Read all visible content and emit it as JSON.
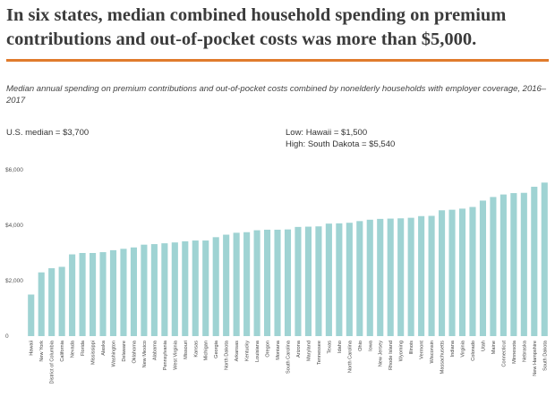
{
  "headline": "In six states, median combined household spending on premium contributions and out-of-pocket costs was more than $5,000.",
  "subtitle": "Median annual spending on premium contributions and out-of-pocket costs combined by nonelderly households with employer coverage, 2016–2017",
  "notes": {
    "us_median": "U.S. median = $3,700",
    "low": "Low: Hawaii = $1,500",
    "high": "High: South Dakota = $5,540"
  },
  "colors": {
    "bar": "#9fd3d3",
    "rule": "#e07b2c"
  },
  "chart_data": {
    "type": "bar",
    "title": "",
    "xlabel": "",
    "ylabel": "",
    "ylim": [
      0,
      6000
    ],
    "yticks": [
      0,
      2000,
      4000,
      6000
    ],
    "ytick_labels": [
      "0",
      "$2,000",
      "$4,000",
      "$6,000"
    ],
    "grid": false,
    "categories": [
      "Hawaii",
      "New York",
      "District of Columbia",
      "California",
      "Nevada",
      "Florida",
      "Mississippi",
      "Alaska",
      "Washington",
      "Delaware",
      "Oklahoma",
      "New Mexico",
      "Alabama",
      "Pennsylvania",
      "West Virginia",
      "Missouri",
      "Kansas",
      "Michigan",
      "Georgia",
      "North Dakota",
      "Arkansas",
      "Kentucky",
      "Louisiana",
      "Oregon",
      "Montana",
      "South Carolina",
      "Arizona",
      "Maryland",
      "Tennessee",
      "Texas",
      "Idaho",
      "North Carolina",
      "Ohio",
      "Iowa",
      "New Jersey",
      "Rhode Island",
      "Wyoming",
      "Illinois",
      "Vermont",
      "Wisconsin",
      "Massachusetts",
      "Indiana",
      "Virginia",
      "Colorado",
      "Utah",
      "Maine",
      "Connecticut",
      "Minnesota",
      "Nebraska",
      "New Hampshire",
      "South Dakota"
    ],
    "values": [
      1500,
      2300,
      2450,
      2500,
      2950,
      3000,
      3000,
      3030,
      3100,
      3150,
      3200,
      3300,
      3320,
      3350,
      3380,
      3420,
      3450,
      3450,
      3570,
      3660,
      3730,
      3750,
      3820,
      3840,
      3840,
      3850,
      3940,
      3950,
      3960,
      4060,
      4070,
      4090,
      4150,
      4200,
      4230,
      4240,
      4250,
      4270,
      4330,
      4340,
      4540,
      4560,
      4600,
      4660,
      4890,
      5020,
      5110,
      5160,
      5170,
      5390,
      5540
    ]
  }
}
